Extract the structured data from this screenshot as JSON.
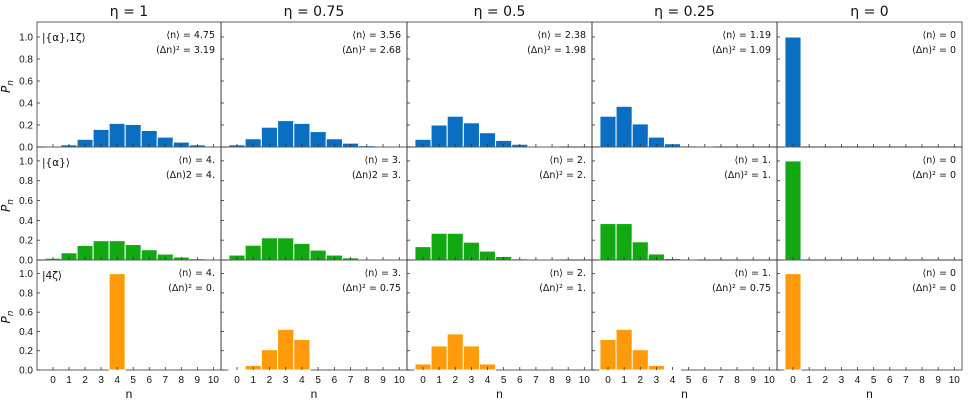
{
  "chart_data": {
    "type": "bar",
    "layout": "grid 3 rows x 5 columns",
    "column_titles": [
      "η = 1",
      "η = 0.75",
      "η = 0.5",
      "η = 0.25",
      "η = 0"
    ],
    "ylabel": "P",
    "ylabel_sub": "n",
    "xlabel": "n",
    "ylim": [
      0,
      1.1
    ],
    "yticks": [
      "0.0",
      "0.2",
      "0.4",
      "0.6",
      "0.8",
      "1.0"
    ],
    "xticks": [
      "0",
      "1",
      "2",
      "3",
      "4",
      "5",
      "6",
      "7",
      "8",
      "9",
      "10"
    ],
    "colors": [
      "#0a6fc2",
      "#12a812",
      "#ff9a0a"
    ],
    "rows": [
      {
        "state": "|{α},1ζ⟩",
        "color": "#0a6fc2",
        "panels": [
          {
            "eta": 1,
            "mean": "⟨n⟩ = 4.75",
            "var": "(Δn)² = 3.19",
            "values": [
              0.005,
              0.02,
              0.07,
              0.16,
              0.215,
              0.205,
              0.15,
              0.09,
              0.045,
              0.02,
              0.008
            ]
          },
          {
            "eta": 0.75,
            "mean": "⟨n⟩ = 3.56",
            "var": "(Δn)² = 2.68",
            "values": [
              0.02,
              0.075,
              0.18,
              0.24,
              0.215,
              0.14,
              0.075,
              0.035,
              0.012,
              0.004,
              0.001
            ]
          },
          {
            "eta": 0.5,
            "mean": "⟨n⟩ = 2.38",
            "var": "(Δn)² = 1.98",
            "values": [
              0.07,
              0.2,
              0.28,
              0.22,
              0.13,
              0.06,
              0.025,
              0.008,
              0.002,
              0.0,
              0.0
            ]
          },
          {
            "eta": 0.25,
            "mean": "⟨n⟩ = 1.19",
            "var": "(Δn)² = 1.09",
            "values": [
              0.28,
              0.37,
              0.21,
              0.09,
              0.03,
              0.01,
              0.002,
              0.0,
              0.0,
              0.0,
              0.0
            ]
          },
          {
            "eta": 0,
            "mean": "⟨n⟩ = 0",
            "var": "(Δn)² = 0",
            "values": [
              1.0,
              0,
              0,
              0,
              0,
              0,
              0,
              0,
              0,
              0,
              0
            ]
          }
        ]
      },
      {
        "state": "|{α}⟩",
        "color": "#12a812",
        "panels": [
          {
            "eta": 1,
            "mean": "⟨n⟩ = 4.",
            "var": "(Δn)2 = 4.",
            "values": [
              0.018,
              0.073,
              0.147,
              0.195,
              0.195,
              0.156,
              0.104,
              0.06,
              0.03,
              0.013,
              0.005
            ]
          },
          {
            "eta": 0.75,
            "mean": "⟨n⟩ = 3.",
            "var": "(Δn)2 = 3.",
            "values": [
              0.05,
              0.149,
              0.224,
              0.224,
              0.168,
              0.1,
              0.05,
              0.022,
              0.008,
              0.003,
              0.001
            ]
          },
          {
            "eta": 0.5,
            "mean": "⟨n⟩ = 2.",
            "var": "(Δn)² = 2.",
            "values": [
              0.135,
              0.27,
              0.27,
              0.18,
              0.09,
              0.036,
              0.012,
              0.003,
              0.001,
              0.0,
              0.0
            ]
          },
          {
            "eta": 0.25,
            "mean": "⟨n⟩ = 1.",
            "var": "(Δn)² = 1.",
            "values": [
              0.368,
              0.368,
              0.184,
              0.061,
              0.015,
              0.003,
              0.0,
              0.0,
              0.0,
              0.0,
              0.0
            ]
          },
          {
            "eta": 0,
            "mean": "⟨n⟩ = 0",
            "var": "(Δn)² = 0",
            "values": [
              1.0,
              0,
              0,
              0,
              0,
              0,
              0,
              0,
              0,
              0,
              0
            ]
          }
        ]
      },
      {
        "state": "|4ζ⟩",
        "color": "#ff9a0a",
        "panels": [
          {
            "eta": 1,
            "mean": "⟨n⟩ = 4.",
            "var": "(Δn)² = 0.",
            "values": [
              0,
              0,
              0,
              0,
              1.0,
              0,
              0,
              0,
              0,
              0,
              0
            ]
          },
          {
            "eta": 0.75,
            "mean": "⟨n⟩ = 3.",
            "var": "(Δn)² = 0.75",
            "values": [
              0.004,
              0.047,
              0.211,
              0.422,
              0.316,
              0,
              0,
              0,
              0,
              0,
              0
            ]
          },
          {
            "eta": 0.5,
            "mean": "⟨n⟩ = 2.",
            "var": "(Δn)² = 1.",
            "values": [
              0.0625,
              0.25,
              0.375,
              0.25,
              0.0625,
              0,
              0,
              0,
              0,
              0,
              0
            ]
          },
          {
            "eta": 0.25,
            "mean": "⟨n⟩ = 1.",
            "var": "(Δn)² = 0.75",
            "values": [
              0.316,
              0.422,
              0.211,
              0.047,
              0.004,
              0,
              0,
              0,
              0,
              0,
              0
            ]
          },
          {
            "eta": 0,
            "mean": "⟨n⟩ = 0",
            "var": "(Δn)² = 0",
            "values": [
              1.0,
              0,
              0,
              0,
              0,
              0,
              0,
              0,
              0,
              0,
              0
            ]
          }
        ]
      }
    ]
  }
}
